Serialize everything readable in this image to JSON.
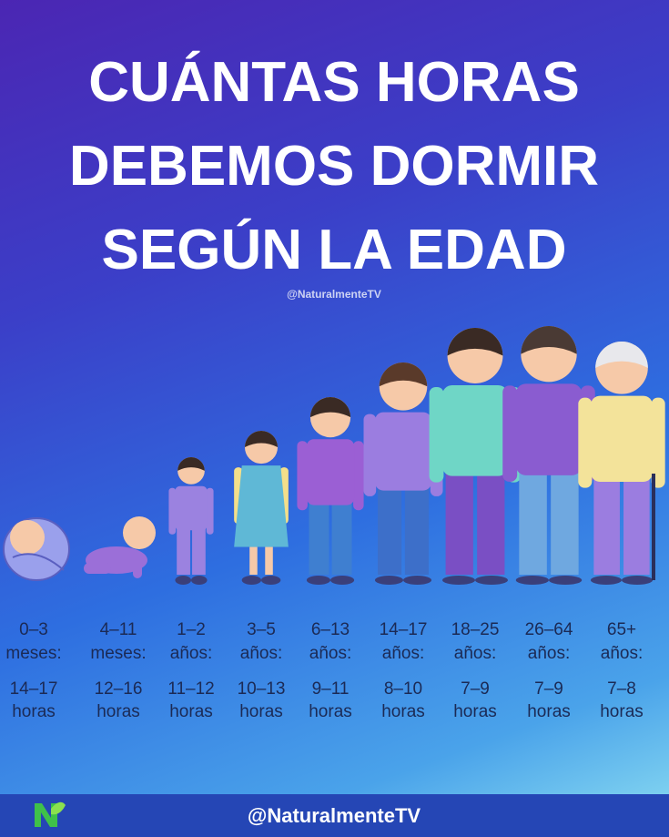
{
  "title": [
    "CUÁNTAS HORAS",
    "DEBEMOS DORMIR",
    "SEGÚN LA EDAD"
  ],
  "watermark": "@NaturalmenteTV",
  "groups": [
    {
      "age": "0–3",
      "unit": "meses:",
      "hours": "14–17",
      "hours_unit": "horas"
    },
    {
      "age": "4–11",
      "unit": "meses:",
      "hours": "12–16",
      "hours_unit": "horas"
    },
    {
      "age": "1–2",
      "unit": "años:",
      "hours": "11–12",
      "hours_unit": "horas"
    },
    {
      "age": "3–5",
      "unit": "años:",
      "hours": "10–13",
      "hours_unit": "horas"
    },
    {
      "age": "6–13",
      "unit": "años:",
      "hours": "9–11",
      "hours_unit": "horas"
    },
    {
      "age": "14–17",
      "unit": "años:",
      "hours": "8–10",
      "hours_unit": "horas"
    },
    {
      "age": "18–25",
      "unit": "años:",
      "hours": "7–9",
      "hours_unit": "horas"
    },
    {
      "age": "26–64",
      "unit": "años:",
      "hours": "7–9",
      "hours_unit": "horas"
    },
    {
      "age": "65+",
      "unit": "años:",
      "hours": "7–8",
      "hours_unit": "horas"
    }
  ],
  "footer": "@NaturalmenteTV"
}
